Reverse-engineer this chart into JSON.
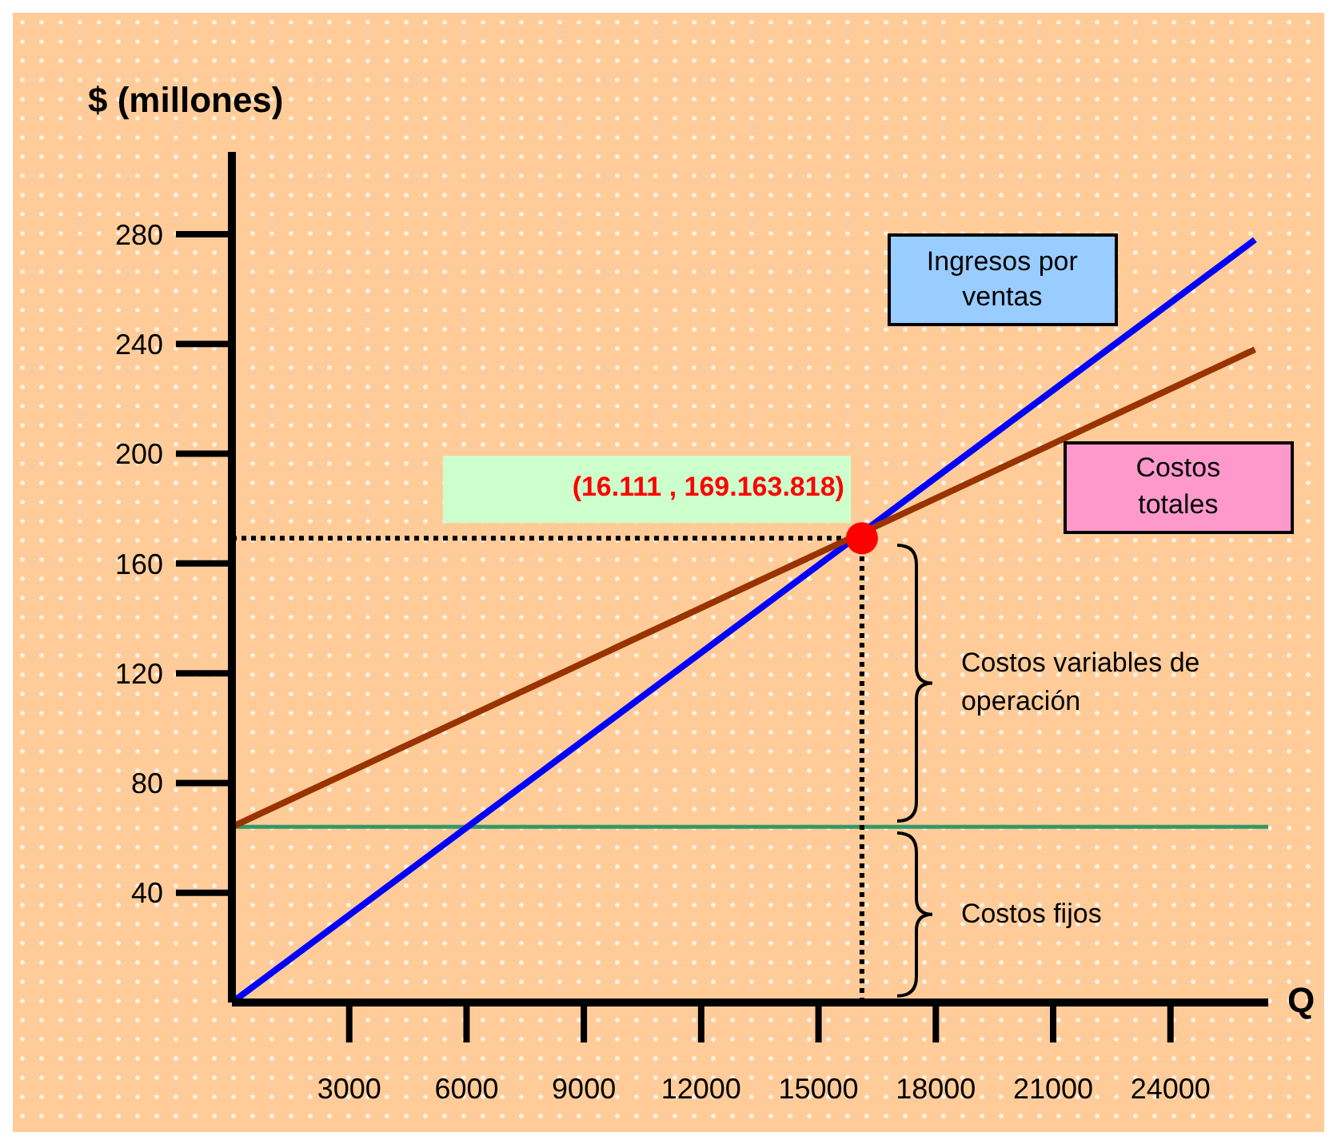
{
  "chart_data": {
    "type": "line",
    "xlabel": "Q",
    "ylabel": "$ (millones)",
    "xlim": [
      0,
      26500
    ],
    "ylim": [
      0,
      310
    ],
    "xticks": [
      3000,
      6000,
      9000,
      12000,
      15000,
      18000,
      21000,
      24000
    ],
    "yticks": [
      40,
      80,
      120,
      160,
      200,
      240,
      280
    ],
    "line_style": "solid",
    "series": [
      {
        "name": "Ingresos por ventas",
        "color": "#0000ff",
        "x": [
          0,
          26160
        ],
        "values": [
          0,
          278
        ]
      },
      {
        "name": "Costos totales",
        "color": "#993300",
        "x": [
          0,
          26160
        ],
        "values": [
          64,
          238
        ]
      },
      {
        "color": "#ff0000",
        "type": "scatter",
        "x": [
          16111
        ],
        "values": [
          169.2
        ]
      }
    ],
    "ref_lines": [
      {
        "axis": "y",
        "value": 64,
        "color": "#339966",
        "line_style": "solid"
      },
      {
        "axis": "x",
        "value": 16111,
        "color": "#000000",
        "line_style": "dotted"
      },
      {
        "axis": "y",
        "value": 169.2,
        "color": "#000000",
        "line_style": "dotted"
      }
    ],
    "annotations": [
      {
        "text": "(16.111 , 169.163.818)",
        "x": 16111,
        "y": 169.2
      },
      "Costos variables de operación",
      "Costos fijos"
    ]
  }
}
